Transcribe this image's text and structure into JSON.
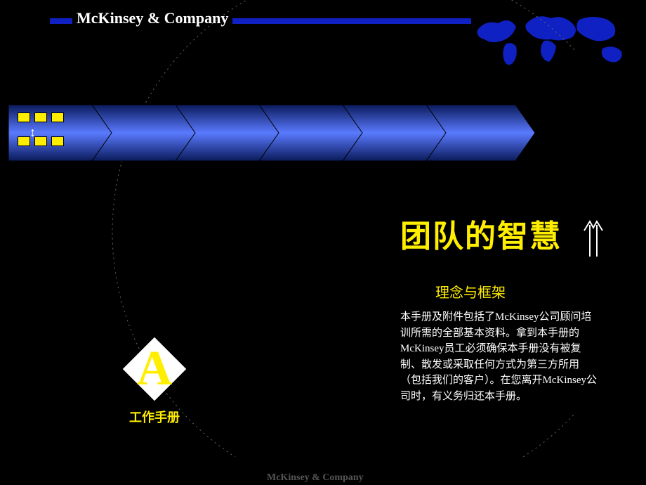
{
  "header": {
    "logo_text": "McKinsey & Company",
    "bar_color": "#1021c4",
    "logo_color": "#ffffff"
  },
  "footer": {
    "logo_text": "McKinsey & Company",
    "color": "#555555"
  },
  "world_map": {
    "fill": "#1021c4"
  },
  "process": {
    "chevron_count": 6,
    "gradient_start": "#0a1a5a",
    "gradient_mid": "#5a7aff",
    "gradient_end": "#0a1a5a",
    "stroke": "#000000",
    "chevron_width": 155,
    "chevron_height": 80,
    "notch": 28,
    "overlap": 8
  },
  "yellow_grid": {
    "color": "#ffee00",
    "rows": 2,
    "cols": 3,
    "arrow_glyph": "↕"
  },
  "arc": {
    "stroke": "#666666",
    "dash": "3,5"
  },
  "title": {
    "text": "团队的智慧",
    "color": "#ffee00",
    "fontsize": 44
  },
  "up_arrow": {
    "stroke": "#ffffff"
  },
  "subtitle": {
    "text": "理念与框架",
    "color": "#ffee00",
    "fontsize": 20
  },
  "body": {
    "text": "本手册及附件包括了McKinsey公司顾问培训所需的全部基本资料。拿到本手册的McKinsey员工必须确保本手册没有被复制、散发或采取任何方式为第三方所用（包括我们的客户）。在您离开McKinsey公司时，有义务归还本手册。",
    "color": "#ffffff",
    "fontsize": 15
  },
  "diamond": {
    "letter": "A",
    "label": "工作手册",
    "shape_fill": "#ffffff",
    "letter_color": "#ffee00",
    "label_color": "#ffee00"
  }
}
